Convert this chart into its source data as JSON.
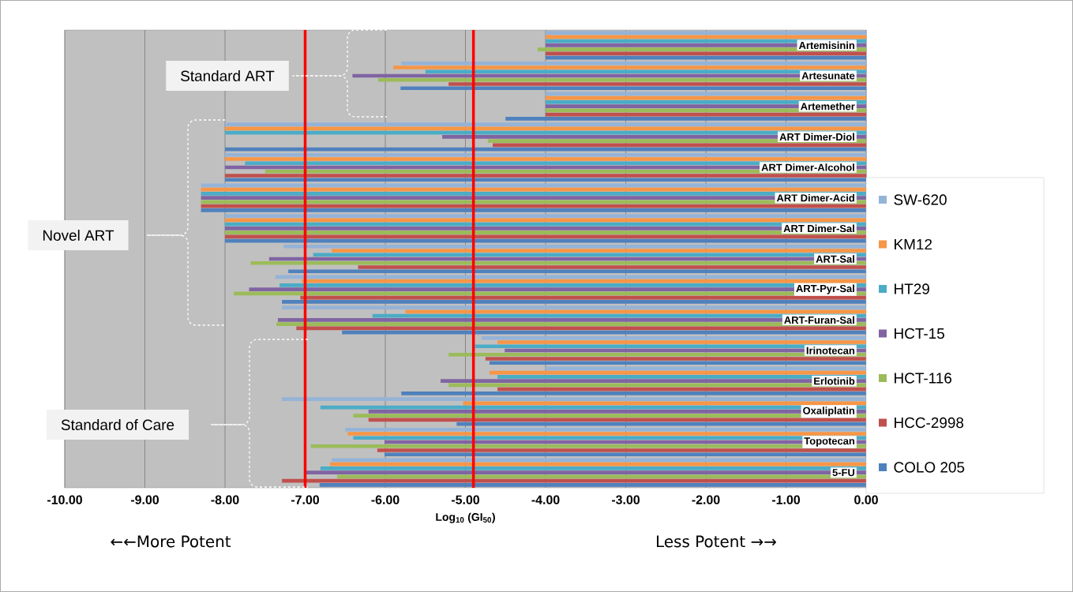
{
  "chart_data": {
    "type": "bar",
    "orientation": "horizontal",
    "xlabel": "Log$_{10}$ (GI$_{50}$)",
    "categories": [
      "Artemisinin",
      "Artesunate",
      "Artemether",
      "ART Dimer-Diol",
      "ART Dimer-Alcohol",
      "ART Dimer-Acid",
      "ART Dimer-Sal",
      "ART-Sal",
      "ART-Pyr-Sal",
      "ART-Furan-Sal",
      "Irinotecan",
      "Erlotinib",
      "Oxaliplatin",
      "Topotecan",
      "5-FU"
    ],
    "series": [
      {
        "name": "SW-620",
        "color": "#95b3d7",
        "values": [
          -4.0,
          -5.8,
          -4.0,
          -8.0,
          -8.0,
          -8.3,
          -8.0,
          -7.27,
          -7.37,
          -7.29,
          -4.8,
          -4.0,
          -7.29,
          -6.5,
          -6.67
        ]
      },
      {
        "name": "KM12",
        "color": "#f79646",
        "values": [
          -4.0,
          -5.9,
          -4.0,
          -8.0,
          -8.0,
          -8.3,
          -8.0,
          -6.67,
          -7.04,
          -5.75,
          -4.6,
          -4.7,
          -5.03,
          -6.47,
          -6.69
        ]
      },
      {
        "name": "HT29",
        "color": "#4bacc6",
        "values": [
          -4.0,
          -5.5,
          -4.0,
          -8.0,
          -7.75,
          -8.3,
          -8.0,
          -6.9,
          -7.32,
          -6.16,
          -4.88,
          -4.6,
          -6.81,
          -6.4,
          -6.81
        ]
      },
      {
        "name": "HCT-15",
        "color": "#8064a2",
        "values": [
          -4.0,
          -6.41,
          -4.0,
          -5.29,
          -8.0,
          -8.3,
          -8.0,
          -7.45,
          -7.7,
          -7.34,
          -4.51,
          -5.31,
          -6.21,
          -6.01,
          -7.0
        ]
      },
      {
        "name": "HCT-116",
        "color": "#9bbb59",
        "values": [
          -4.1,
          -6.09,
          -4.0,
          -4.72,
          -7.5,
          -8.3,
          -8.0,
          -7.68,
          -7.89,
          -7.36,
          -5.21,
          -5.21,
          -6.4,
          -6.93,
          -6.6
        ]
      },
      {
        "name": "HCC-2998",
        "color": "#c0504d",
        "values": [
          -4.0,
          -5.21,
          -4.0,
          -4.66,
          -8.0,
          -8.3,
          -8.0,
          -6.34,
          -7.06,
          -7.11,
          -4.75,
          -4.6,
          -6.21,
          -6.1,
          -7.29
        ]
      },
      {
        "name": "COLO 205",
        "color": "#4f81bd",
        "values": [
          -4.0,
          -5.81,
          -4.5,
          -8.0,
          -8.0,
          -8.3,
          -8.0,
          -7.21,
          -7.29,
          -6.54,
          -4.7,
          -5.8,
          -5.11,
          -6.01,
          -6.82
        ]
      }
    ],
    "xlim": [
      -10,
      0
    ],
    "xticks": [
      {
        "value": -10,
        "label": "-10.00"
      },
      {
        "value": -9,
        "label": "-9.00"
      },
      {
        "value": -8,
        "label": "-8.00"
      },
      {
        "value": -7,
        "label": "-7.00"
      },
      {
        "value": -6,
        "label": "-6.00"
      },
      {
        "value": -5,
        "label": "-5.00"
      },
      {
        "value": -4,
        "label": "-4.00"
      },
      {
        "value": -3,
        "label": "-3.00"
      },
      {
        "value": -2,
        "label": "-2.00"
      },
      {
        "value": -1,
        "label": "-1.00"
      },
      {
        "value": 0,
        "label": "0.00"
      }
    ],
    "ref_lines": [
      {
        "axis": "x",
        "value": -7,
        "color": "#ff0000"
      },
      {
        "axis": "x",
        "value": -4.9,
        "color": "#ff0000"
      }
    ],
    "annotations": [
      "Standard ART",
      "Novel ART",
      "Standard of Care",
      "←←More Potent",
      "Less Potent →→"
    ],
    "grid": true,
    "legend": "right"
  }
}
